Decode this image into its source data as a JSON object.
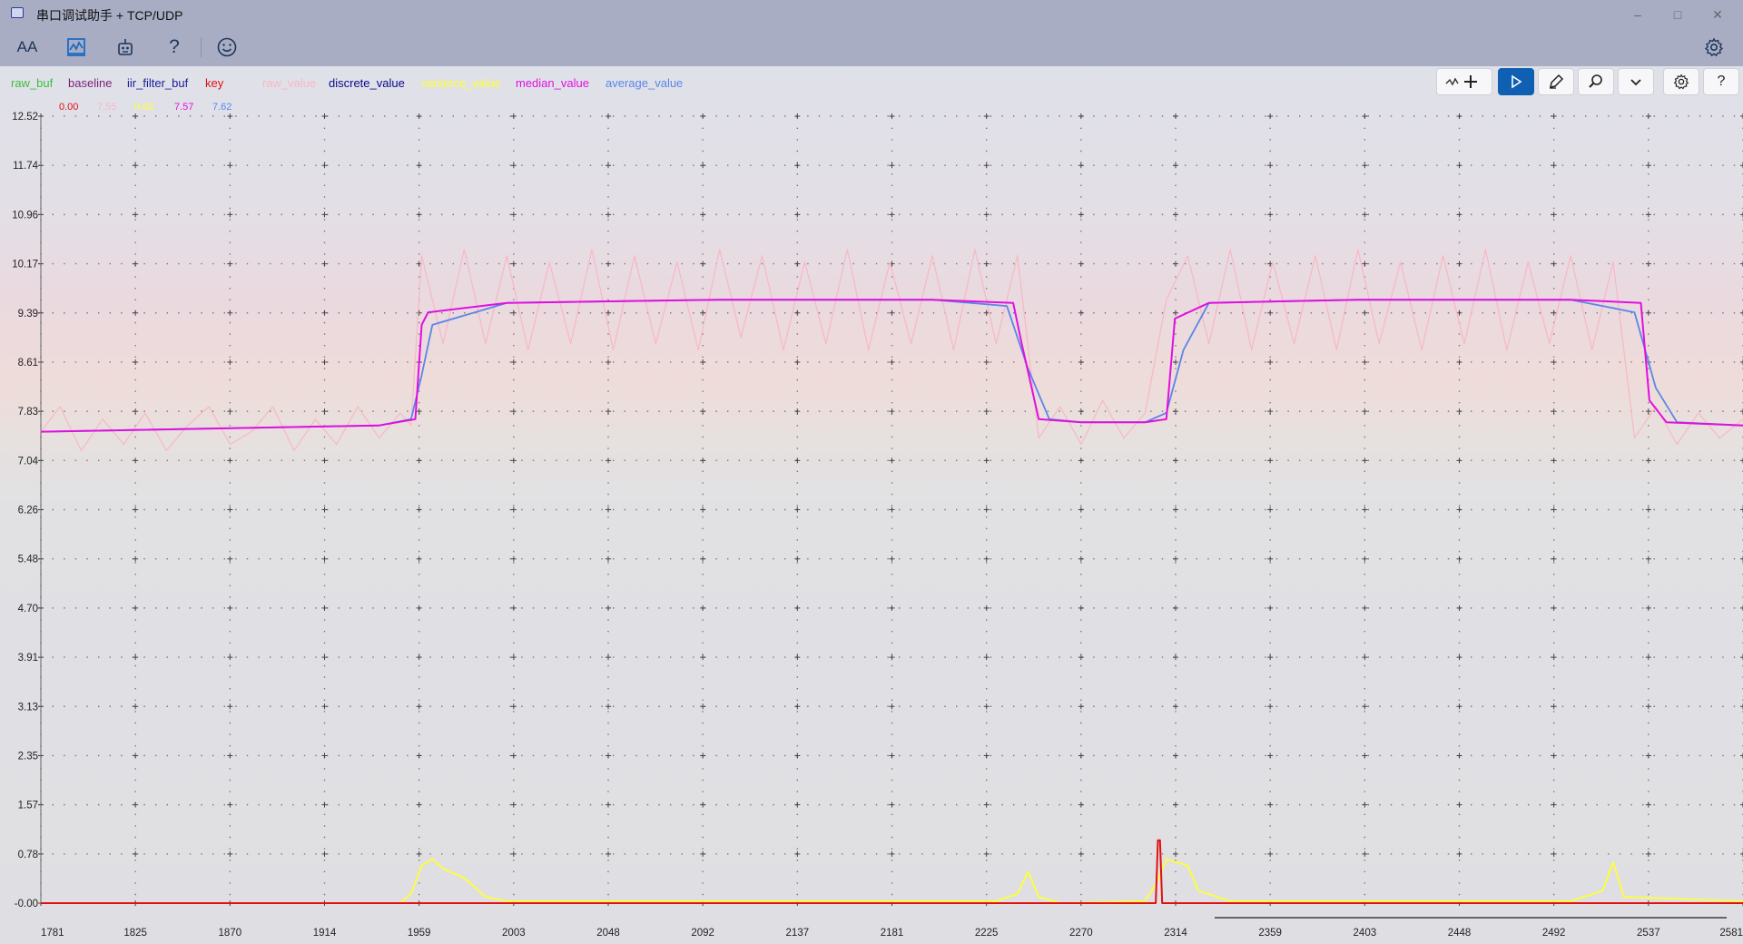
{
  "window": {
    "title": "串口调试助手 + TCP/UDP",
    "controls": [
      "minimize-icon",
      "maximize-icon",
      "close-icon"
    ]
  },
  "toolbar": {
    "buttons": [
      {
        "name": "font-icon",
        "label": "AA"
      },
      {
        "name": "waveform-icon"
      },
      {
        "name": "plugin-icon"
      },
      {
        "name": "help-icon",
        "label": "?"
      },
      {
        "name": "smiley-icon"
      }
    ],
    "settings_icon": "gear-icon"
  },
  "legend": {
    "items": [
      {
        "label": "raw_buf",
        "color": "#3bbf3b"
      },
      {
        "label": "baseline",
        "color": "#7a1f7a"
      },
      {
        "label": "iir_filter_buf",
        "color": "#1b1b9c"
      },
      {
        "label": "key",
        "color": "#e01010"
      },
      {
        "label": "raw_value",
        "color": "#f7b8c4"
      },
      {
        "label": "discrete_value",
        "color": "#0a0a8a"
      },
      {
        "label": "variance_value",
        "color": "#ffff33"
      },
      {
        "label": "median_value",
        "color": "#e010e0"
      },
      {
        "label": "average_value",
        "color": "#5b86e6"
      }
    ],
    "values": [
      {
        "value": "0.00",
        "color": "#e01010"
      },
      {
        "value": "7.55",
        "color": "#f7b8c4"
      },
      {
        "value": "0.03",
        "color": "#ffff33"
      },
      {
        "value": "7.57",
        "color": "#e010e0"
      },
      {
        "value": "7.62",
        "color": "#5b86e6"
      }
    ]
  },
  "plot_tools": {
    "buttons": [
      "wave-add-icon",
      "play-icon",
      "clear-icon",
      "zoom-icon",
      "chevron-down-icon",
      "gear-icon",
      "help-icon"
    ],
    "active": "play-icon"
  },
  "chart_data": {
    "type": "line",
    "title": "",
    "xlabel": "",
    "ylabel": "",
    "xlim": [
      1781,
      2581
    ],
    "ylim": [
      -0.0,
      12.52
    ],
    "grid": true,
    "y_ticks": [
      "12.52",
      "11.74",
      "10.96",
      "10.17",
      "9.39",
      "8.61",
      "7.83",
      "7.04",
      "6.26",
      "5.48",
      "4.70",
      "3.91",
      "3.13",
      "2.35",
      "1.57",
      "0.78",
      "-0.00"
    ],
    "x_ticks": [
      "1781",
      "1825",
      "1870",
      "1914",
      "1959",
      "2003",
      "2048",
      "2092",
      "2137",
      "2181",
      "2225",
      "2270",
      "2314",
      "2359",
      "2403",
      "2448",
      "2492",
      "2537",
      "2581"
    ],
    "series": [
      {
        "name": "raw_value",
        "color": "#f7b8c4",
        "x": [
          1781,
          1790,
          1800,
          1810,
          1820,
          1830,
          1840,
          1850,
          1860,
          1870,
          1880,
          1890,
          1900,
          1910,
          1920,
          1930,
          1940,
          1950,
          1955,
          1960,
          1970,
          1980,
          1990,
          2000,
          2010,
          2020,
          2030,
          2040,
          2050,
          2060,
          2070,
          2080,
          2090,
          2100,
          2110,
          2120,
          2130,
          2140,
          2150,
          2160,
          2170,
          2180,
          2190,
          2200,
          2210,
          2220,
          2230,
          2240,
          2250,
          2260,
          2270,
          2280,
          2290,
          2300,
          2310,
          2320,
          2330,
          2340,
          2350,
          2360,
          2370,
          2380,
          2390,
          2400,
          2410,
          2420,
          2430,
          2440,
          2450,
          2460,
          2470,
          2480,
          2490,
          2500,
          2510,
          2520,
          2530,
          2540,
          2550,
          2560,
          2570,
          2581
        ],
        "y": [
          7.5,
          7.9,
          7.2,
          7.7,
          7.3,
          7.8,
          7.2,
          7.6,
          7.9,
          7.3,
          7.5,
          7.9,
          7.2,
          7.7,
          7.3,
          7.9,
          7.4,
          7.8,
          7.6,
          10.3,
          8.9,
          10.4,
          8.9,
          10.3,
          8.8,
          10.2,
          8.9,
          10.4,
          8.8,
          10.3,
          8.9,
          10.2,
          8.8,
          10.4,
          9.0,
          10.3,
          8.8,
          10.2,
          8.9,
          10.4,
          8.8,
          10.2,
          8.9,
          10.3,
          8.8,
          10.4,
          8.9,
          10.3,
          7.4,
          7.9,
          7.3,
          8.0,
          7.4,
          7.8,
          9.6,
          10.3,
          8.9,
          10.4,
          8.8,
          10.2,
          8.9,
          10.3,
          8.8,
          10.4,
          8.9,
          10.2,
          8.8,
          10.3,
          8.9,
          10.4,
          8.8,
          10.2,
          8.9,
          10.3,
          8.8,
          10.2,
          7.4,
          7.9,
          7.3,
          7.8,
          7.4,
          7.7
        ]
      },
      {
        "name": "average_value",
        "color": "#5b86e6",
        "x": [
          1781,
          1940,
          1955,
          1960,
          1965,
          2000,
          2100,
          2200,
          2235,
          2245,
          2255,
          2270,
          2300,
          2310,
          2318,
          2330,
          2400,
          2500,
          2530,
          2540,
          2550,
          2581
        ],
        "y": [
          7.5,
          7.6,
          7.7,
          8.4,
          9.2,
          9.55,
          9.6,
          9.6,
          9.5,
          8.5,
          7.7,
          7.65,
          7.65,
          7.8,
          8.8,
          9.55,
          9.6,
          9.6,
          9.4,
          8.2,
          7.65,
          7.6
        ]
      },
      {
        "name": "median_value",
        "color": "#e010e0",
        "x": [
          1781,
          1940,
          1957,
          1960,
          1963,
          2000,
          2100,
          2200,
          2238,
          2242,
          2250,
          2270,
          2300,
          2310,
          2314,
          2330,
          2400,
          2500,
          2533,
          2537,
          2545,
          2581
        ],
        "y": [
          7.5,
          7.6,
          7.7,
          9.2,
          9.4,
          9.55,
          9.6,
          9.6,
          9.55,
          8.9,
          7.7,
          7.65,
          7.65,
          7.7,
          9.3,
          9.55,
          9.6,
          9.6,
          9.55,
          8.0,
          7.65,
          7.6
        ]
      },
      {
        "name": "variance_value",
        "color": "#ffff33",
        "x": [
          1781,
          1950,
          1955,
          1960,
          1965,
          1970,
          1980,
          1990,
          2000,
          2230,
          2240,
          2245,
          2250,
          2260,
          2300,
          2305,
          2310,
          2320,
          2325,
          2340,
          2500,
          2515,
          2520,
          2525,
          2581
        ],
        "y": [
          0.0,
          0.0,
          0.15,
          0.6,
          0.7,
          0.55,
          0.4,
          0.1,
          0.03,
          0.03,
          0.15,
          0.5,
          0.1,
          0.0,
          0.03,
          0.3,
          0.7,
          0.6,
          0.2,
          0.03,
          0.03,
          0.2,
          0.65,
          0.1,
          0.03
        ]
      },
      {
        "name": "key",
        "color": "#e01010",
        "x": [
          1781,
          2305,
          2306,
          2307,
          2308,
          2581
        ],
        "y": [
          0.0,
          0.0,
          1.0,
          1.0,
          0.0,
          0.0
        ]
      }
    ]
  }
}
